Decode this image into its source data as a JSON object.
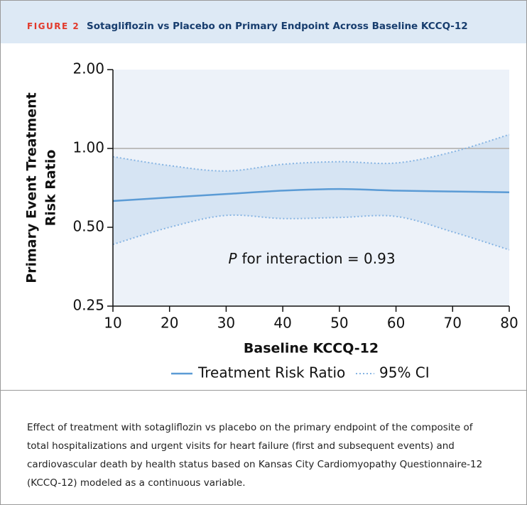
{
  "header": {
    "label": "FIGURE 2",
    "title": "Sotagliflozin vs Placebo on Primary Endpoint Across Baseline KCCQ-12"
  },
  "caption": "Effect of treatment with sotagliflozin vs placebo on the primary endpoint of the composite of total hospitalizations and urgent visits for heart failure (first and subsequent events) and cardiovascular death by health status based on Kansas City Cardiomyopathy Questionnaire-12 (KCCQ-12) modeled as a continuous variable.",
  "chart_data": {
    "type": "line",
    "xlabel": "Baseline KCCQ-12",
    "ylabel": [
      "Primary Event Treatment",
      "Risk Ratio"
    ],
    "x": [
      10,
      20,
      30,
      40,
      50,
      60,
      70,
      80
    ],
    "xlim": [
      10,
      80
    ],
    "xticks": [
      10,
      20,
      30,
      40,
      50,
      60,
      70,
      80
    ],
    "ylim": [
      0.25,
      2
    ],
    "log_y": true,
    "yticks": [
      {
        "value": 0.25,
        "label": "0.25"
      },
      {
        "value": 0.5,
        "label": "0.50"
      },
      {
        "value": 1,
        "label": "1.00"
      },
      {
        "value": 2,
        "label": "2.00"
      }
    ],
    "reference_line": 1,
    "series": [
      {
        "name": "Treatment Risk Ratio",
        "color": "#5b9bd5",
        "values": [
          0.63,
          0.65,
          0.67,
          0.69,
          0.7,
          0.69,
          0.685,
          0.68
        ]
      },
      {
        "name": "95% CI",
        "color": "#86b4e3",
        "band_color": "#d6e4f3",
        "lower": [
          0.43,
          0.5,
          0.555,
          0.54,
          0.545,
          0.55,
          0.48,
          0.41
        ],
        "upper": [
          0.93,
          0.86,
          0.82,
          0.87,
          0.89,
          0.88,
          0.97,
          1.13
        ]
      }
    ],
    "annotation": {
      "label": "P",
      "text": "for interaction = 0.93"
    },
    "plot_background": "#edf2f9"
  }
}
